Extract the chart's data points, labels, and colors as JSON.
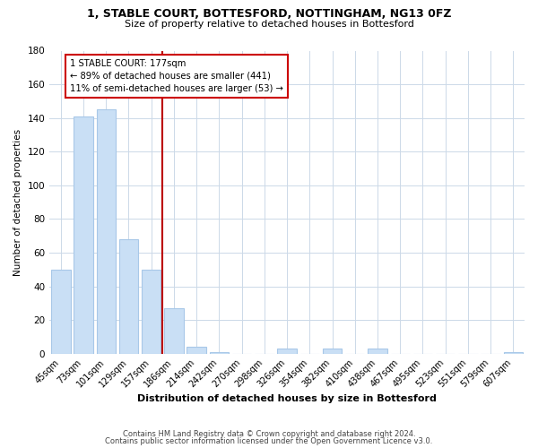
{
  "title_line1": "1, STABLE COURT, BOTTESFORD, NOTTINGHAM, NG13 0FZ",
  "title_line2": "Size of property relative to detached houses in Bottesford",
  "xlabel": "Distribution of detached houses by size in Bottesford",
  "ylabel": "Number of detached properties",
  "bar_labels": [
    "45sqm",
    "73sqm",
    "101sqm",
    "129sqm",
    "157sqm",
    "186sqm",
    "214sqm",
    "242sqm",
    "270sqm",
    "298sqm",
    "326sqm",
    "354sqm",
    "382sqm",
    "410sqm",
    "438sqm",
    "467sqm",
    "495sqm",
    "523sqm",
    "551sqm",
    "579sqm",
    "607sqm"
  ],
  "bar_values": [
    50,
    141,
    145,
    68,
    50,
    27,
    4,
    1,
    0,
    0,
    3,
    0,
    3,
    0,
    3,
    0,
    0,
    0,
    0,
    0,
    1
  ],
  "bar_color": "#c9dff5",
  "bar_edge_color": "#a8c8e8",
  "property_label": "1 STABLE COURT: 177sqm",
  "annotation_line1": "← 89% of detached houses are smaller (441)",
  "annotation_line2": "11% of semi-detached houses are larger (53) →",
  "vline_color": "#bb0000",
  "annotation_box_color": "#ffffff",
  "annotation_box_edge": "#cc0000",
  "ylim": [
    0,
    180
  ],
  "yticks": [
    0,
    20,
    40,
    60,
    80,
    100,
    120,
    140,
    160,
    180
  ],
  "footer_line1": "Contains HM Land Registry data © Crown copyright and database right 2024.",
  "footer_line2": "Contains public sector information licensed under the Open Government Licence v3.0.",
  "background_color": "#ffffff",
  "grid_color": "#ccd9e8"
}
